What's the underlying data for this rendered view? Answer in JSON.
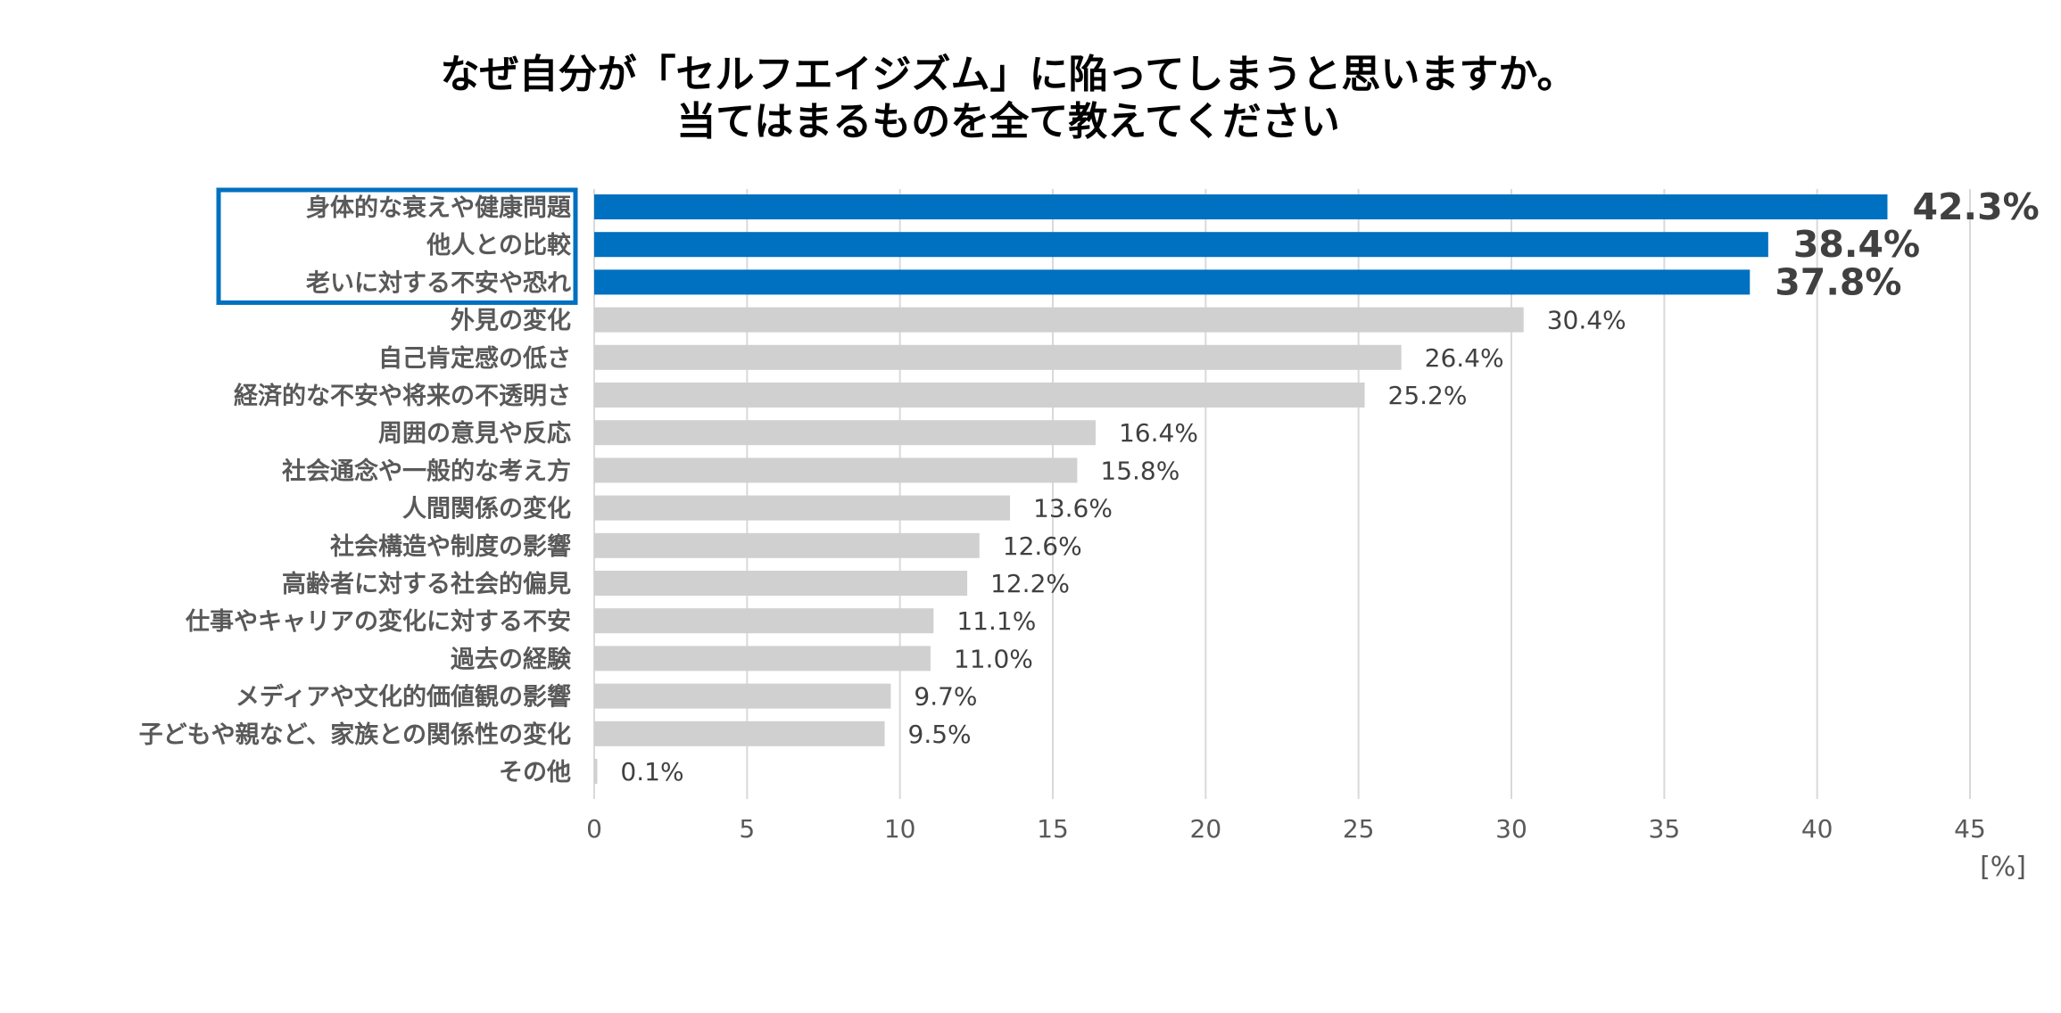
{
  "chart_data": {
    "type": "bar",
    "orientation": "horizontal",
    "title_lines": [
      "なぜ自分が「セルフエイジズム」に陥ってしまうと思いますか。",
      "当てはまるものを全て教えてください"
    ],
    "categories": [
      "身体的な衰えや健康問題",
      "他人との比較",
      "老いに対する不安や恐れ",
      "外見の変化",
      "自己肯定感の低さ",
      "経済的な不安や将来の不透明さ",
      "周囲の意見や反応",
      "社会通念や一般的な考え方",
      "人間関係の変化",
      "社会構造や制度の影響",
      "高齢者に対する社会的偏見",
      "仕事やキャリアの変化に対する不安",
      "過去の経験",
      "メディアや文化的価値観の影響",
      "子どもや親など、家族との関係性の変化",
      "その他"
    ],
    "values": [
      42.3,
      38.4,
      37.8,
      30.4,
      26.4,
      25.2,
      16.4,
      15.8,
      13.6,
      12.6,
      12.2,
      11.1,
      11.0,
      9.7,
      9.5,
      0.1
    ],
    "value_labels": [
      "42.3%",
      "38.4%",
      "37.8%",
      "30.4%",
      "26.4%",
      "25.2%",
      "16.4%",
      "15.8%",
      "13.6%",
      "12.6%",
      "12.2%",
      "11.1%",
      "11.0%",
      "9.7%",
      "9.5%",
      "0.1%"
    ],
    "highlighted_count": 3,
    "xlim": [
      0,
      45
    ],
    "xticks": [
      0,
      5,
      10,
      15,
      20,
      25,
      30,
      35,
      40,
      45
    ],
    "unit_label": "[%]",
    "grid": true,
    "colors": {
      "highlight": "#0070C0",
      "default_bar": "#D0D0D0",
      "grid": "#D9D9D9",
      "box_border": "#0070C0"
    }
  }
}
